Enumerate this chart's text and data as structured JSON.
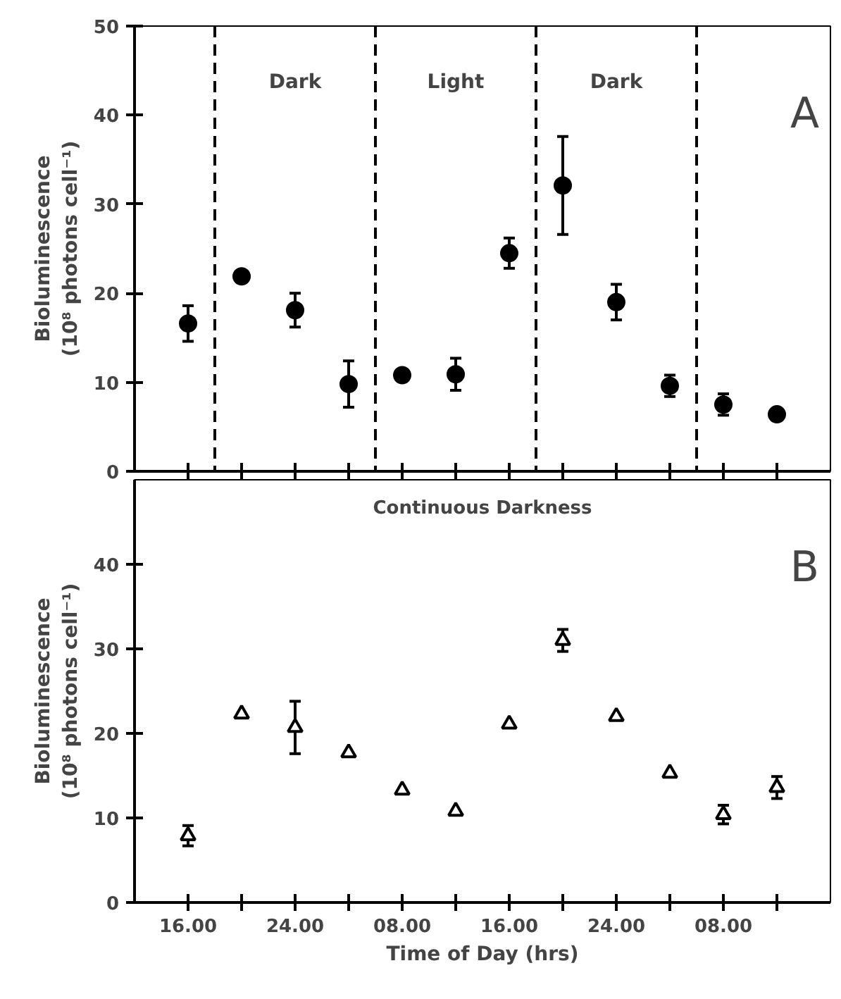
{
  "chart_data": [
    {
      "type": "scatter",
      "ylabel": "Bioluminescence\n(10⁸ photons cell⁻¹)",
      "x": [
        "2000-01-01T16:00",
        "2000-01-01T20:00",
        "2000-01-02T00:00",
        "2000-01-02T04:00",
        "2000-01-02T08:00",
        "2000-01-02T12:00",
        "2000-01-02T16:00",
        "2000-01-02T20:00",
        "2000-01-03T00:00",
        "2000-01-03T04:00",
        "2000-01-03T08:00",
        "2000-01-03T12:00"
      ],
      "series": [
        {
          "color": "#000000",
          "values": [
            16.6,
            21.9,
            18.1,
            9.8,
            10.8,
            10.9,
            24.5,
            32.1,
            19.0,
            9.6,
            7.5,
            6.4
          ],
          "errors": [
            2,
            null,
            1.9,
            2.6,
            null,
            1.8,
            1.7,
            5.5,
            2,
            1.2,
            1.2,
            null
          ]
        }
      ],
      "marker": "circle",
      "xlim": [
        "2000-01-01T12:00",
        "2000-01-03T16:00"
      ],
      "ylim": [
        0,
        50
      ],
      "xticks": [
        {
          "value": "2000-01-01T16:00",
          "label": null
        },
        {
          "value": "2000-01-01T20:00",
          "label": null
        },
        {
          "value": "2000-01-02T00:00",
          "label": null
        },
        {
          "value": "2000-01-02T04:00",
          "label": null
        },
        {
          "value": "2000-01-02T08:00",
          "label": null
        },
        {
          "value": "2000-01-02T12:00",
          "label": null
        },
        {
          "value": "2000-01-02T16:00",
          "label": null
        },
        {
          "value": "2000-01-02T20:00",
          "label": null
        },
        {
          "value": "2000-01-03T00:00",
          "label": null
        },
        {
          "value": "2000-01-03T04:00",
          "label": null
        },
        {
          "value": "2000-01-03T08:00",
          "label": null
        },
        {
          "value": "2000-01-03T12:00",
          "label": null
        }
      ],
      "yticks": [
        0,
        10,
        20,
        30,
        40,
        50
      ],
      "tick_labels": "y",
      "ref_lines": [
        {
          "axis": "x",
          "value": "2000-01-01T18:00",
          "line_style": "dashed"
        },
        {
          "axis": "x",
          "value": "2000-01-02T06:00",
          "line_style": "dashed"
        },
        {
          "axis": "x",
          "value": "2000-01-02T18:00",
          "line_style": "dashed"
        },
        {
          "axis": "x",
          "value": "2000-01-03T06:00",
          "line_style": "dashed"
        }
      ],
      "annotations": [
        "Dark",
        "Light",
        "Dark",
        "A"
      ]
    },
    {
      "type": "scatter",
      "title": "Continuous Darkness",
      "xlabel": "Time of Day (hrs)",
      "ylabel": "Bioluminescence\n(10⁸ photons cell⁻¹)",
      "x": [
        "2000-01-01T16:00",
        "2000-01-01T20:00",
        "2000-01-02T00:00",
        "2000-01-02T04:00",
        "2000-01-02T08:00",
        "2000-01-02T12:00",
        "2000-01-02T16:00",
        "2000-01-02T20:00",
        "2000-01-03T00:00",
        "2000-01-03T04:00",
        "2000-01-03T08:00",
        "2000-01-03T12:00"
      ],
      "series": [
        {
          "color": "#000000",
          "values": [
            7.9,
            22.3,
            20.7,
            17.7,
            13.3,
            10.8,
            21.1,
            31.0,
            22.0,
            15.3,
            10.4,
            13.6
          ],
          "errors": [
            1.2,
            null,
            3.1,
            null,
            null,
            null,
            null,
            1.3,
            null,
            null,
            1.1,
            1.3
          ]
        }
      ],
      "marker": "triangle",
      "xlim": [
        "2000-01-01T12:00",
        "2000-01-03T16:00"
      ],
      "ylim": [
        0,
        50
      ],
      "xticks": [
        {
          "value": "2000-01-01T16:00",
          "label": "16.00"
        },
        {
          "value": "2000-01-01T20:00",
          "label": null
        },
        {
          "value": "2000-01-02T00:00",
          "label": "24.00"
        },
        {
          "value": "2000-01-02T04:00",
          "label": null
        },
        {
          "value": "2000-01-02T08:00",
          "label": "08.00"
        },
        {
          "value": "2000-01-02T12:00",
          "label": null
        },
        {
          "value": "2000-01-02T16:00",
          "label": "16.00"
        },
        {
          "value": "2000-01-02T20:00",
          "label": null
        },
        {
          "value": "2000-01-03T00:00",
          "label": "24.00"
        },
        {
          "value": "2000-01-03T04:00",
          "label": null
        },
        {
          "value": "2000-01-03T08:00",
          "label": "08.00"
        },
        {
          "value": "2000-01-03T12:00",
          "label": null
        }
      ],
      "yticks": [
        0,
        10,
        20,
        30,
        40
      ],
      "annotations": [
        "B"
      ]
    }
  ]
}
